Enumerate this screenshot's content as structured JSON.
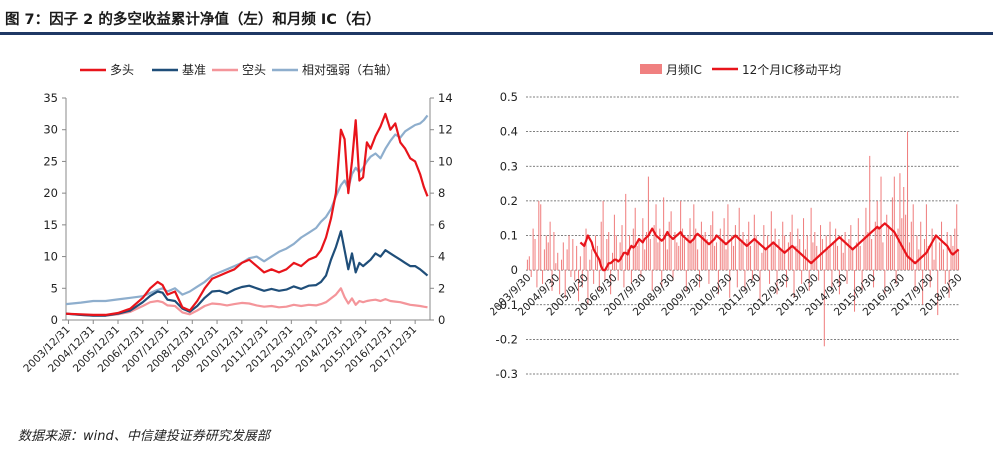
{
  "figure": {
    "title": "图 7：因子 2 的多空收益累计净值（左）和月频 IC（右）",
    "source": "数据来源：wind、中信建投证券研究发展部"
  },
  "chart_data": [
    {
      "type": "line",
      "legend_placement": "top",
      "grid": false,
      "categories": [
        "2003/12/31",
        "2004/12/31",
        "2005/12/31",
        "2006/12/31",
        "2007/12/31",
        "2008/12/31",
        "2009/12/31",
        "2010/12/31",
        "2011/12/31",
        "2012/12/31",
        "2013/12/31",
        "2014/12/31",
        "2015/12/31",
        "2016/12/31",
        "2017/12/31"
      ],
      "x_range": [
        2003.9,
        2018.6
      ],
      "ylim": [
        0,
        35
      ],
      "yticks": [
        0,
        5,
        10,
        15,
        20,
        25,
        30,
        35
      ],
      "y2lim": [
        0,
        14
      ],
      "y2ticks": [
        0,
        2,
        4,
        6,
        8,
        10,
        12,
        14
      ],
      "series": [
        {
          "name": "多头",
          "color": "#e8141b",
          "axis": "left",
          "x": [
            2003.9,
            2004.5,
            2005.0,
            2005.5,
            2006.0,
            2006.5,
            2007.0,
            2007.3,
            2007.6,
            2007.8,
            2008.0,
            2008.3,
            2008.6,
            2008.9,
            2009.2,
            2009.5,
            2009.8,
            2010.1,
            2010.4,
            2010.7,
            2011.0,
            2011.3,
            2011.6,
            2011.9,
            2012.2,
            2012.5,
            2012.8,
            2013.1,
            2013.4,
            2013.7,
            2014.0,
            2014.2,
            2014.4,
            2014.6,
            2014.8,
            2015.0,
            2015.15,
            2015.3,
            2015.45,
            2015.6,
            2015.75,
            2015.9,
            2016.05,
            2016.2,
            2016.4,
            2016.6,
            2016.8,
            2017.0,
            2017.2,
            2017.4,
            2017.6,
            2017.8,
            2018.0,
            2018.2,
            2018.35,
            2018.5
          ],
          "y": [
            1.0,
            0.9,
            0.8,
            0.8,
            1.1,
            1.8,
            3.5,
            5.0,
            6.0,
            5.5,
            4.0,
            4.5,
            2.0,
            1.5,
            3.0,
            5.0,
            6.5,
            7.0,
            7.5,
            8.0,
            9.0,
            9.5,
            8.5,
            7.5,
            8.0,
            7.5,
            8.0,
            9.0,
            8.5,
            9.5,
            10.0,
            11.0,
            13.0,
            16.0,
            20.0,
            30.0,
            28.5,
            20.0,
            25.0,
            31.5,
            22.0,
            22.5,
            28.0,
            27.0,
            29.0,
            30.5,
            32.5,
            30.0,
            31.0,
            28.0,
            27.0,
            25.5,
            25.0,
            23.0,
            21.0,
            19.5
          ]
        },
        {
          "name": "基准",
          "color": "#1f4e79",
          "axis": "left",
          "x": [
            2003.9,
            2004.5,
            2005.0,
            2005.5,
            2006.0,
            2006.5,
            2007.0,
            2007.3,
            2007.6,
            2007.8,
            2008.0,
            2008.3,
            2008.6,
            2008.9,
            2009.2,
            2009.5,
            2009.8,
            2010.1,
            2010.4,
            2010.7,
            2011.0,
            2011.3,
            2011.6,
            2011.9,
            2012.2,
            2012.5,
            2012.8,
            2013.1,
            2013.4,
            2013.7,
            2014.0,
            2014.2,
            2014.4,
            2014.6,
            2014.8,
            2015.0,
            2015.15,
            2015.3,
            2015.45,
            2015.6,
            2015.75,
            2015.9,
            2016.05,
            2016.2,
            2016.4,
            2016.6,
            2016.8,
            2017.0,
            2017.2,
            2017.4,
            2017.6,
            2017.8,
            2018.0,
            2018.2,
            2018.35,
            2018.5
          ],
          "y": [
            1.0,
            0.8,
            0.7,
            0.7,
            1.0,
            1.5,
            2.8,
            3.8,
            4.5,
            4.3,
            3.2,
            3.0,
            1.8,
            1.3,
            2.2,
            3.5,
            4.5,
            4.6,
            4.2,
            4.8,
            5.2,
            5.4,
            5.0,
            4.6,
            4.9,
            4.6,
            4.8,
            5.3,
            4.9,
            5.4,
            5.5,
            6.0,
            7.0,
            9.5,
            11.5,
            14.0,
            11.0,
            8.0,
            10.5,
            7.5,
            9.0,
            8.5,
            9.0,
            9.5,
            10.5,
            10.0,
            11.0,
            10.5,
            10.0,
            9.5,
            9.0,
            8.5,
            8.5,
            8.0,
            7.5,
            7.0
          ]
        },
        {
          "name": "空头",
          "color": "#f4959a",
          "axis": "left",
          "x": [
            2003.9,
            2004.5,
            2005.0,
            2005.5,
            2006.0,
            2006.5,
            2007.0,
            2007.3,
            2007.6,
            2007.8,
            2008.0,
            2008.3,
            2008.6,
            2008.9,
            2009.2,
            2009.5,
            2009.8,
            2010.1,
            2010.4,
            2010.7,
            2011.0,
            2011.3,
            2011.6,
            2011.9,
            2012.2,
            2012.5,
            2012.8,
            2013.1,
            2013.4,
            2013.7,
            2014.0,
            2014.2,
            2014.4,
            2014.6,
            2014.8,
            2015.0,
            2015.15,
            2015.3,
            2015.45,
            2015.6,
            2015.75,
            2015.9,
            2016.05,
            2016.2,
            2016.4,
            2016.6,
            2016.8,
            2017.0,
            2017.2,
            2017.4,
            2017.6,
            2017.8,
            2018.0,
            2018.2,
            2018.35,
            2018.5
          ],
          "y": [
            1.0,
            0.8,
            0.7,
            0.7,
            0.9,
            1.3,
            2.2,
            2.8,
            3.0,
            2.8,
            2.3,
            2.2,
            1.2,
            0.9,
            1.5,
            2.2,
            2.6,
            2.5,
            2.3,
            2.5,
            2.7,
            2.6,
            2.3,
            2.1,
            2.2,
            2.0,
            2.1,
            2.4,
            2.2,
            2.4,
            2.3,
            2.5,
            2.8,
            3.4,
            4.0,
            5.0,
            3.6,
            2.6,
            3.4,
            2.4,
            3.0,
            2.8,
            3.0,
            3.1,
            3.2,
            3.0,
            3.3,
            3.0,
            2.9,
            2.8,
            2.6,
            2.4,
            2.3,
            2.2,
            2.1,
            2.0
          ]
        },
        {
          "name": "相对强弱（右轴）",
          "color": "#8eaecd",
          "axis": "right",
          "x": [
            2003.9,
            2004.5,
            2005.0,
            2005.5,
            2006.0,
            2006.5,
            2007.0,
            2007.3,
            2007.6,
            2007.8,
            2008.0,
            2008.3,
            2008.6,
            2008.9,
            2009.2,
            2009.5,
            2009.8,
            2010.1,
            2010.4,
            2010.7,
            2011.0,
            2011.3,
            2011.6,
            2011.9,
            2012.2,
            2012.5,
            2012.8,
            2013.1,
            2013.4,
            2013.7,
            2014.0,
            2014.2,
            2014.4,
            2014.6,
            2014.8,
            2015.0,
            2015.15,
            2015.3,
            2015.45,
            2015.6,
            2015.75,
            2015.9,
            2016.05,
            2016.2,
            2016.4,
            2016.6,
            2016.8,
            2017.0,
            2017.2,
            2017.4,
            2017.6,
            2017.8,
            2018.0,
            2018.2,
            2018.35,
            2018.5
          ],
          "y": [
            1.0,
            1.1,
            1.2,
            1.2,
            1.3,
            1.4,
            1.5,
            1.7,
            1.9,
            2.0,
            1.8,
            2.0,
            1.6,
            1.8,
            2.1,
            2.4,
            2.8,
            3.0,
            3.2,
            3.4,
            3.6,
            3.9,
            4.0,
            3.7,
            4.0,
            4.3,
            4.5,
            4.8,
            5.2,
            5.5,
            5.8,
            6.2,
            6.5,
            7.0,
            7.8,
            8.5,
            8.8,
            8.3,
            9.2,
            9.6,
            9.3,
            9.6,
            10.0,
            10.3,
            10.5,
            10.2,
            10.8,
            11.3,
            11.7,
            11.5,
            11.9,
            12.1,
            12.3,
            12.4,
            12.6,
            12.9
          ]
        }
      ]
    },
    {
      "type": "bar",
      "legend_placement": "top",
      "grid": true,
      "ylim": [
        -0.3,
        0.5
      ],
      "yticks": [
        -0.3,
        -0.2,
        -0.1,
        0,
        0.1,
        0.2,
        0.3,
        0.4,
        0.5
      ],
      "x_range": [
        2003.7,
        2018.8
      ],
      "tick_labels": [
        "2003/9/30",
        "2004/9/30",
        "2005/9/30",
        "2006/9/30",
        "2007/9/30",
        "2008/9/30",
        "2009/9/30",
        "2010/9/30",
        "2011/9/30",
        "2012/9/30",
        "2013/9/30",
        "2014/9/30",
        "2015/9/30",
        "2016/9/30",
        "2017/9/30",
        "2018/9/30"
      ],
      "series": [
        {
          "name": "月频IC",
          "color": "#f08080",
          "type": "bar",
          "values": [
            0.03,
            0.04,
            -0.02,
            0.12,
            0.09,
            -0.05,
            0.2,
            0.19,
            -0.04,
            0.06,
            0.1,
            0.08,
            0.14,
            -0.06,
            0.11,
            0.02,
            0.05,
            -0.07,
            0.03,
            0.08,
            -0.08,
            0.06,
            0.1,
            -0.02,
            0.09,
            -0.03,
            0.07,
            -0.09,
            0.04,
            -0.05,
            0.08,
            0.12,
            -0.1,
            0.03,
            0.06,
            -0.04,
            0.1,
            0.07,
            -0.06,
            0.14,
            0.2,
            -0.03,
            0.09,
            0.11,
            -0.07,
            0.05,
            0.16,
            0.1,
            -0.03,
            0.08,
            0.13,
            -0.05,
            0.22,
            0.06,
            0.1,
            -0.04,
            0.12,
            0.18,
            0.07,
            0.09,
            -0.02,
            0.15,
            0.06,
            0.11,
            0.27,
            0.09,
            -0.06,
            0.13,
            0.19,
            0.08,
            0.12,
            -0.05,
            0.21,
            0.1,
            0.06,
            0.14,
            0.17,
            -0.03,
            0.11,
            0.08,
            0.07,
            0.2,
            0.12,
            0.09,
            -0.06,
            0.1,
            0.15,
            0.08,
            0.19,
            0.12,
            0.06,
            -0.05,
            0.14,
            0.1,
            0.11,
            0.09,
            -0.04,
            0.13,
            0.17,
            0.07,
            0.08,
            -0.07,
            0.12,
            0.09,
            0.15,
            0.06,
            0.19,
            -0.08,
            0.1,
            0.07,
            0.13,
            -0.05,
            0.18,
            0.08,
            0.11,
            -0.06,
            0.09,
            0.14,
            0.07,
            -0.03,
            0.16,
            0.1,
            0.08,
            -0.09,
            0.05,
            0.13,
            0.06,
            0.1,
            -0.04,
            0.17,
            0.08,
            0.12,
            -0.07,
            0.09,
            0.06,
            0.14,
            0.1,
            -0.05,
            0.08,
            0.11,
            0.16,
            -0.08,
            0.07,
            0.12,
            0.09,
            -0.04,
            0.15,
            0.06,
            0.1,
            -0.06,
            0.18,
            0.08,
            0.11,
            0.07,
            -0.03,
            0.13,
            0.09,
            -0.22,
            0.1,
            0.06,
            0.14,
            -0.05,
            0.08,
            0.12,
            0.07,
            -0.07,
            0.1,
            0.05,
            0.11,
            -0.04,
            0.09,
            0.13,
            0.06,
            -0.12,
            0.08,
            0.15,
            0.07,
            -0.06,
            0.1,
            0.18,
            0.11,
            0.33,
            0.09,
            -0.05,
            0.14,
            0.2,
            0.12,
            0.27,
            0.08,
            -0.07,
            0.16,
            0.13,
            0.1,
            0.21,
            0.27,
            -0.04,
            0.12,
            0.28,
            0.15,
            0.24,
            0.16,
            0.4,
            0.08,
            0.14,
            0.19,
            -0.06,
            0.1,
            0.06,
            0.14,
            -0.1,
            0.09,
            0.19,
            0.07,
            -0.05,
            0.12,
            0.03,
            0.1,
            -0.13,
            0.08,
            0.14,
            0.06,
            -0.04,
            0.11,
            -0.08,
            0.1,
            0.07,
            0.12,
            0.19,
            0.06
          ]
        },
        {
          "name": "12个月IC移动平均",
          "color": "#e8141b",
          "type": "line",
          "values": [
            0.08,
            0.075,
            0.07,
            0.085,
            0.1,
            0.09,
            0.08,
            0.06,
            0.05,
            0.04,
            0.03,
            0.01,
            0.0,
            0.0,
            0.01,
            0.02,
            0.02,
            0.025,
            0.03,
            0.03,
            0.025,
            0.03,
            0.04,
            0.05,
            0.05,
            0.045,
            0.06,
            0.07,
            0.065,
            0.07,
            0.08,
            0.09,
            0.085,
            0.08,
            0.09,
            0.095,
            0.1,
            0.11,
            0.12,
            0.11,
            0.1,
            0.095,
            0.09,
            0.085,
            0.09,
            0.1,
            0.11,
            0.1,
            0.095,
            0.09,
            0.095,
            0.1,
            0.105,
            0.11,
            0.1,
            0.095,
            0.09,
            0.085,
            0.08,
            0.085,
            0.09,
            0.1,
            0.105,
            0.1,
            0.095,
            0.09,
            0.085,
            0.08,
            0.075,
            0.08,
            0.085,
            0.09,
            0.1,
            0.095,
            0.09,
            0.085,
            0.08,
            0.075,
            0.08,
            0.085,
            0.09,
            0.095,
            0.1,
            0.095,
            0.09,
            0.085,
            0.08,
            0.075,
            0.07,
            0.075,
            0.08,
            0.085,
            0.09,
            0.085,
            0.08,
            0.075,
            0.07,
            0.065,
            0.06,
            0.065,
            0.07,
            0.075,
            0.08,
            0.075,
            0.07,
            0.065,
            0.06,
            0.055,
            0.05,
            0.055,
            0.06,
            0.065,
            0.07,
            0.065,
            0.06,
            0.055,
            0.05,
            0.045,
            0.04,
            0.035,
            0.03,
            0.025,
            0.02,
            0.025,
            0.03,
            0.035,
            0.04,
            0.045,
            0.05,
            0.055,
            0.06,
            0.065,
            0.07,
            0.075,
            0.08,
            0.085,
            0.09,
            0.095,
            0.09,
            0.085,
            0.08,
            0.075,
            0.07,
            0.065,
            0.06,
            0.065,
            0.07,
            0.075,
            0.08,
            0.085,
            0.09,
            0.095,
            0.1,
            0.105,
            0.11,
            0.115,
            0.12,
            0.125,
            0.12,
            0.125,
            0.13,
            0.135,
            0.13,
            0.125,
            0.12,
            0.115,
            0.11,
            0.1,
            0.09,
            0.08,
            0.07,
            0.06,
            0.05,
            0.04,
            0.035,
            0.03,
            0.025,
            0.02,
            0.025,
            0.03,
            0.035,
            0.04,
            0.045,
            0.05,
            0.06,
            0.07,
            0.08,
            0.09,
            0.1,
            0.095,
            0.09,
            0.085,
            0.08,
            0.075,
            0.07,
            0.06,
            0.05,
            0.045,
            0.05,
            0.055,
            0.06
          ]
        }
      ]
    }
  ]
}
